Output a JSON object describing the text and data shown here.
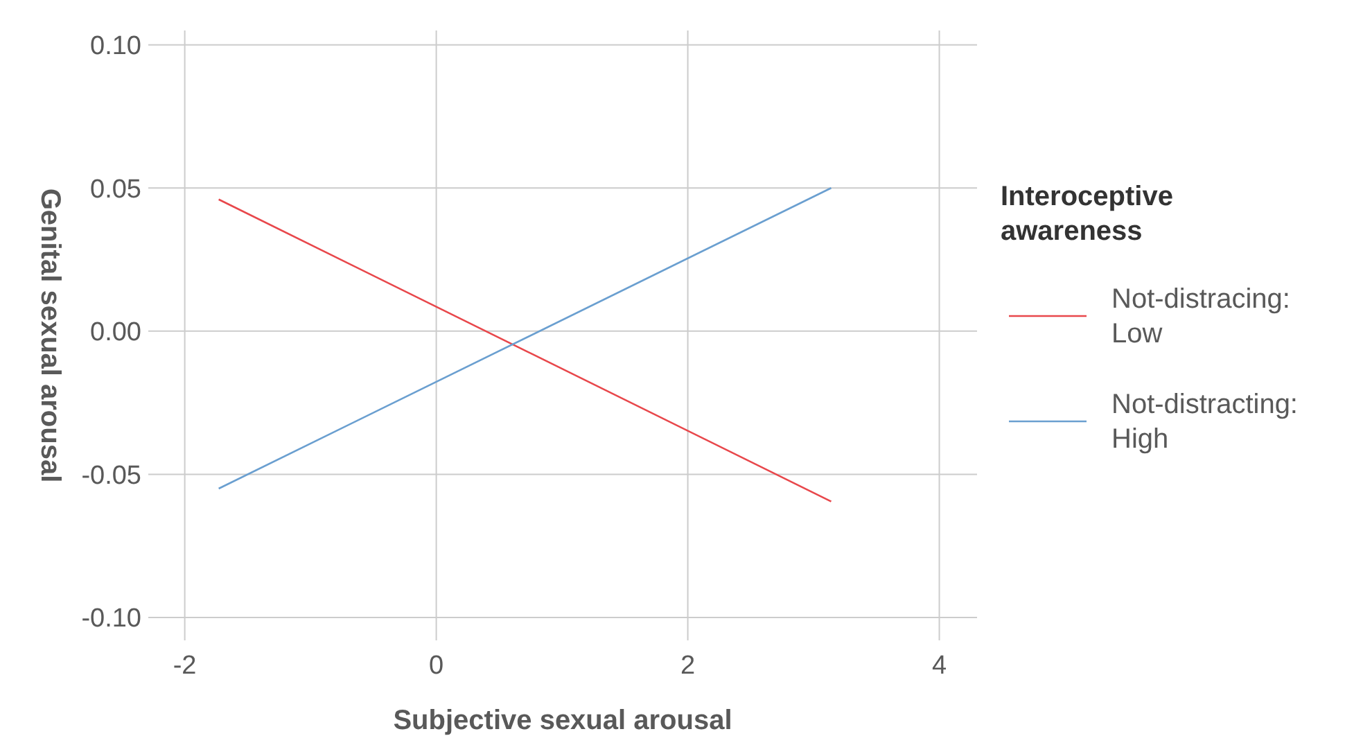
{
  "chart_data": {
    "type": "line",
    "xlabel": "Subjective sexual arousal",
    "ylabel": "Genital sexual arousal",
    "legend_title": "Interoceptive\nawareness",
    "x": [
      -1.73,
      3.14
    ],
    "series": [
      {
        "name": "Not-distracing:\nLow",
        "color": "#e8474b",
        "values": [
          0.046,
          -0.0595
        ]
      },
      {
        "name": "Not-distracting:\nHigh",
        "color": "#6a9fd0",
        "values": [
          -0.055,
          0.05
        ]
      }
    ],
    "xlim": [
      -2.29,
      4.3
    ],
    "xticks": [
      -2,
      0,
      2,
      4
    ],
    "ylim": [
      -0.108,
      0.105
    ],
    "yticks": [
      {
        "value": -0.1,
        "label": "-0.10"
      },
      {
        "value": -0.05,
        "label": "-0.05"
      },
      {
        "value": 0,
        "label": "0.00"
      },
      {
        "value": 0.05,
        "label": "0.05"
      },
      {
        "value": 0.1,
        "label": "0.10"
      }
    ],
    "grid": true,
    "legend": "right",
    "marker": "none",
    "line_style": "solid"
  }
}
